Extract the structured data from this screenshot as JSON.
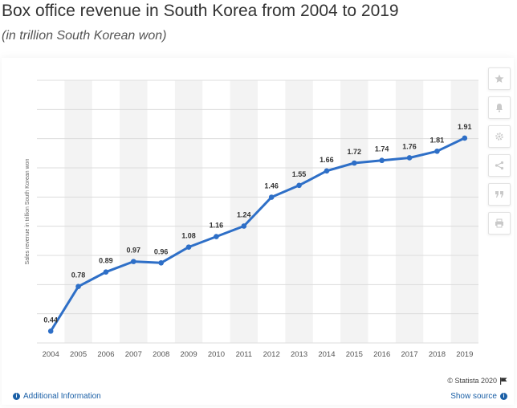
{
  "header": {
    "title": "Box office revenue in South Korea from 2004 to 2019",
    "subtitle": "(in trillion South Korean won)"
  },
  "toolbar": {
    "buttons": [
      {
        "name": "star-icon"
      },
      {
        "name": "bell-icon"
      },
      {
        "name": "gear-icon"
      },
      {
        "name": "share-icon"
      },
      {
        "name": "quote-icon"
      },
      {
        "name": "print-icon"
      }
    ]
  },
  "footer": {
    "copyright": "© Statista 2020",
    "additional_info": "Additional Information",
    "show_source": "Show source"
  },
  "colors": {
    "line": "#2e6fc7",
    "band": "#f3f3f3",
    "grid": "#dcdcdc",
    "link": "#1a5fa6"
  },
  "chart_data": {
    "type": "line",
    "title": "",
    "xlabel": "",
    "ylabel": "Sales revenue in trillion South Korean won",
    "categories": [
      "2004",
      "2005",
      "2006",
      "2007",
      "2008",
      "2009",
      "2010",
      "2011",
      "2012",
      "2013",
      "2014",
      "2015",
      "2016",
      "2017",
      "2018",
      "2019"
    ],
    "series": [
      {
        "values": [
          0.44,
          0.78,
          0.89,
          0.97,
          0.96,
          1.08,
          1.16,
          1.24,
          1.46,
          1.55,
          1.66,
          1.72,
          1.74,
          1.76,
          1.81,
          1.91
        ],
        "labels": [
          "0.44",
          "0.78",
          "0.89",
          "0.97",
          "0.96",
          "1.08",
          "1.16",
          "1.24",
          "1.46",
          "1.55",
          "1.66",
          "1.72",
          "1.74",
          "1.76",
          "1.81",
          "1.91"
        ]
      }
    ],
    "ylim": [
      0.35,
      2.35
    ],
    "gridlines": 9,
    "alternating_bands": true,
    "grid": true,
    "legend": false
  }
}
